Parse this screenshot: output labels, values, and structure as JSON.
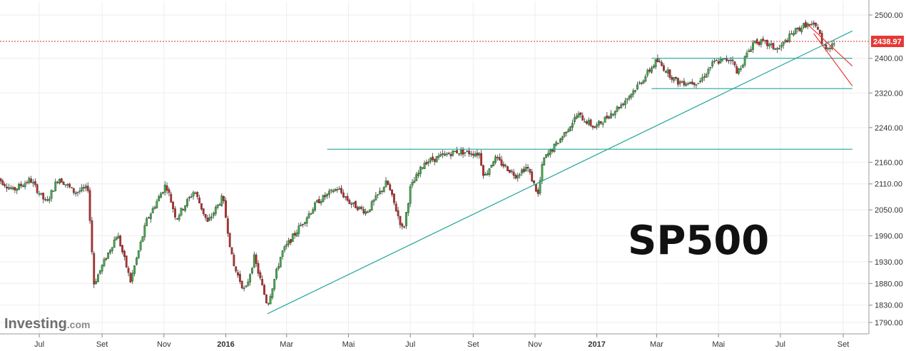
{
  "chart_data": {
    "type": "candlestick",
    "title": "SP500",
    "y_ticks": [
      1790,
      1830,
      1880,
      1930,
      1990,
      2050,
      2110,
      2160,
      2240,
      2320,
      2400,
      2500
    ],
    "x_tick_labels": [
      {
        "label": "Jul",
        "date": "2015-07-01",
        "bold": false
      },
      {
        "label": "Set",
        "date": "2015-09-01",
        "bold": false
      },
      {
        "label": "Nov",
        "date": "2015-11-01",
        "bold": false
      },
      {
        "label": "2016",
        "date": "2016-01-01",
        "bold": true
      },
      {
        "label": "Mar",
        "date": "2016-03-01",
        "bold": false
      },
      {
        "label": "Mai",
        "date": "2016-05-01",
        "bold": false
      },
      {
        "label": "Jul",
        "date": "2016-07-01",
        "bold": false
      },
      {
        "label": "Set",
        "date": "2016-09-01",
        "bold": false
      },
      {
        "label": "Nov",
        "date": "2016-11-01",
        "bold": false
      },
      {
        "label": "2017",
        "date": "2017-01-01",
        "bold": true
      },
      {
        "label": "Mar",
        "date": "2017-03-01",
        "bold": false
      },
      {
        "label": "Mai",
        "date": "2017-05-01",
        "bold": false
      },
      {
        "label": "Jul",
        "date": "2017-07-01",
        "bold": false
      },
      {
        "label": "Set",
        "date": "2017-09-01",
        "bold": false
      }
    ],
    "current_price": {
      "value": 2438.97,
      "label": "2438.97"
    },
    "price_path": [
      [
        "2015-05-20",
        2125
      ],
      [
        "2015-06-05",
        2095
      ],
      [
        "2015-06-22",
        2120
      ],
      [
        "2015-07-08",
        2065
      ],
      [
        "2015-07-20",
        2125
      ],
      [
        "2015-08-05",
        2090
      ],
      [
        "2015-08-18",
        2100
      ],
      [
        "2015-08-24",
        1880
      ],
      [
        "2015-09-01",
        1920
      ],
      [
        "2015-09-16",
        1995
      ],
      [
        "2015-09-29",
        1885
      ],
      [
        "2015-10-15",
        2025
      ],
      [
        "2015-11-03",
        2110
      ],
      [
        "2015-11-13",
        2030
      ],
      [
        "2015-12-01",
        2095
      ],
      [
        "2015-12-14",
        2020
      ],
      [
        "2015-12-29",
        2080
      ],
      [
        "2016-01-08",
        1925
      ],
      [
        "2016-01-20",
        1860
      ],
      [
        "2016-01-29",
        1940
      ],
      [
        "2016-02-11",
        1830
      ],
      [
        "2016-02-25",
        1950
      ],
      [
        "2016-03-15",
        2015
      ],
      [
        "2016-04-01",
        2070
      ],
      [
        "2016-04-20",
        2100
      ],
      [
        "2016-05-03",
        2065
      ],
      [
        "2016-05-19",
        2045
      ],
      [
        "2016-06-08",
        2115
      ],
      [
        "2016-06-24",
        2000
      ],
      [
        "2016-07-01",
        2100
      ],
      [
        "2016-07-15",
        2160
      ],
      [
        "2016-08-15",
        2185
      ],
      [
        "2016-09-07",
        2180
      ],
      [
        "2016-09-12",
        2125
      ],
      [
        "2016-09-22",
        2170
      ],
      [
        "2016-10-13",
        2130
      ],
      [
        "2016-10-24",
        2150
      ],
      [
        "2016-11-04",
        2085
      ],
      [
        "2016-11-09",
        2165
      ],
      [
        "2016-11-25",
        2210
      ],
      [
        "2016-12-13",
        2270
      ],
      [
        "2016-12-30",
        2240
      ],
      [
        "2017-01-26",
        2295
      ],
      [
        "2017-02-15",
        2350
      ],
      [
        "2017-03-01",
        2395
      ],
      [
        "2017-03-21",
        2345
      ],
      [
        "2017-04-12",
        2345
      ],
      [
        "2017-04-26",
        2390
      ],
      [
        "2017-05-16",
        2400
      ],
      [
        "2017-05-18",
        2360
      ],
      [
        "2017-06-05",
        2440
      ],
      [
        "2017-06-15",
        2435
      ],
      [
        "2017-06-29",
        2420
      ],
      [
        "2017-07-14",
        2460
      ],
      [
        "2017-07-26",
        2478
      ],
      [
        "2017-08-08",
        2470
      ],
      [
        "2017-08-11",
        2430
      ],
      [
        "2017-08-17",
        2425
      ],
      [
        "2017-08-24",
        2438.97
      ]
    ],
    "annotations": [
      {
        "type": "horizontal",
        "value": 2400,
        "from": "2017-02-24",
        "to": "2017-09-10",
        "color": "#26a69a"
      },
      {
        "type": "horizontal",
        "value": 2330,
        "from": "2017-02-24",
        "to": "2017-09-10",
        "color": "#26a69a"
      },
      {
        "type": "horizontal",
        "value": 2190,
        "from": "2016-04-10",
        "to": "2017-09-10",
        "color": "#26a69a"
      },
      {
        "type": "trendline",
        "from": [
          "2016-02-11",
          1810
        ],
        "to": [
          "2017-09-10",
          2463
        ],
        "color": "#26a69a"
      },
      {
        "type": "trendline",
        "from": [
          "2017-07-28",
          2478
        ],
        "to": [
          "2017-09-10",
          2382
        ],
        "color": "#e53935"
      },
      {
        "type": "trendline",
        "from": [
          "2017-08-03",
          2457
        ],
        "to": [
          "2017-09-10",
          2336
        ],
        "color": "#e53935"
      },
      {
        "type": "price-line",
        "value": 2438.97,
        "color": "#d32f2f"
      }
    ],
    "colors": {
      "up": "#3cb043",
      "down": "#c62828",
      "grid": "#eeeeee",
      "support": "#26a69a",
      "resistance": "#e53935"
    },
    "grid": true
  },
  "watermark": {
    "brand": "Investing",
    "suffix": ".com"
  }
}
